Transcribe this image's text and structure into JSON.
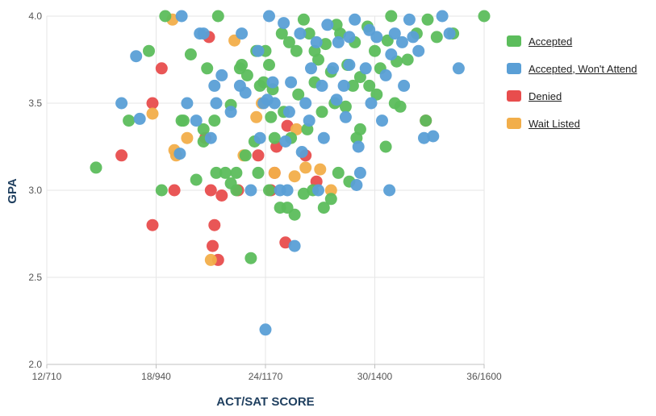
{
  "chart_data": {
    "type": "scatter",
    "xlabel": "ACT/SAT SCORE",
    "ylabel": "GPA",
    "x_ticks": [
      "12/710",
      "18/940",
      "24/1170",
      "30/1400",
      "36/1600"
    ],
    "x_tick_values": [
      12,
      18,
      24,
      30,
      36
    ],
    "xlim": [
      12,
      36
    ],
    "y_ticks": [
      "2.0",
      "2.5",
      "3.0",
      "3.5",
      "4.0"
    ],
    "y_tick_values": [
      2.0,
      2.5,
      3.0,
      3.5,
      4.0
    ],
    "ylim": [
      2.0,
      4.0
    ],
    "grid": true,
    "legend_position": "right",
    "series": [
      {
        "name": "Denied",
        "color": "#e84d4d",
        "points": [
          [
            16.1,
            3.2
          ],
          [
            17.8,
            3.5
          ],
          [
            17.8,
            2.8
          ],
          [
            18.3,
            3.7
          ],
          [
            19,
            3.0
          ],
          [
            20.9,
            3.88
          ],
          [
            20.7,
            3.3
          ],
          [
            21,
            3.0
          ],
          [
            21.2,
            2.8
          ],
          [
            21.6,
            2.97
          ],
          [
            21.1,
            2.68
          ],
          [
            21.4,
            2.6
          ],
          [
            22.5,
            3.0
          ],
          [
            23.6,
            3.2
          ],
          [
            24.3,
            3.0
          ],
          [
            24.6,
            3.25
          ],
          [
            24.5,
            3.1
          ],
          [
            25.1,
            2.7
          ],
          [
            25.2,
            3.37
          ],
          [
            26.2,
            3.2
          ],
          [
            26.8,
            3.05
          ],
          [
            32.8,
            3.4
          ]
        ]
      },
      {
        "name": "Wait Listed",
        "color": "#f2ae4a",
        "points": [
          [
            17.8,
            3.44
          ],
          [
            18.9,
            3.98
          ],
          [
            19,
            3.23
          ],
          [
            19.1,
            3.2
          ],
          [
            19.7,
            3.3
          ],
          [
            21,
            2.6
          ],
          [
            22.3,
            3.86
          ],
          [
            22.8,
            3.2
          ],
          [
            23.5,
            3.42
          ],
          [
            23.8,
            3.5
          ],
          [
            24.5,
            3.1
          ],
          [
            25.6,
            3.08
          ],
          [
            25.7,
            3.35
          ],
          [
            26.2,
            3.13
          ],
          [
            27,
            3.12
          ],
          [
            27.6,
            3.0
          ]
        ]
      },
      {
        "name": "Accepted",
        "color": "#5cbd5c",
        "points": [
          [
            14.7,
            3.13
          ],
          [
            16.5,
            3.4
          ],
          [
            17.6,
            3.8
          ],
          [
            18.5,
            4.0
          ],
          [
            18.3,
            3.0
          ],
          [
            19.5,
            3.4
          ],
          [
            19.9,
            3.78
          ],
          [
            20.2,
            3.06
          ],
          [
            20.6,
            3.35
          ],
          [
            21.4,
            4.0
          ],
          [
            21.3,
            3.1
          ],
          [
            20.8,
            3.7
          ],
          [
            22.1,
            3.49
          ],
          [
            22.4,
            3.1
          ],
          [
            22.6,
            3.7
          ],
          [
            23,
            3.66
          ],
          [
            23.5,
            3.8
          ],
          [
            23.9,
            3.62
          ],
          [
            24.2,
            3.72
          ],
          [
            24.4,
            3.58
          ],
          [
            24.9,
            3.9
          ],
          [
            25.3,
            3.85
          ],
          [
            25.7,
            3.8
          ],
          [
            26.1,
            3.98
          ],
          [
            26.4,
            3.9
          ],
          [
            26.9,
            3.75
          ],
          [
            27.3,
            3.84
          ],
          [
            27.6,
            3.68
          ],
          [
            28.1,
            3.9
          ],
          [
            28.5,
            3.72
          ],
          [
            28.9,
            3.85
          ],
          [
            29.2,
            3.65
          ],
          [
            29.6,
            3.94
          ],
          [
            30,
            3.8
          ],
          [
            30.3,
            3.7
          ],
          [
            30.7,
            3.86
          ],
          [
            31.2,
            3.74
          ],
          [
            31.8,
            3.75
          ],
          [
            32.3,
            3.9
          ],
          [
            32.8,
            3.4
          ],
          [
            33.4,
            3.88
          ],
          [
            34.3,
            3.9
          ],
          [
            36,
            4.0
          ],
          [
            31.1,
            3.5
          ],
          [
            30.6,
            3.25
          ],
          [
            29.2,
            3.35
          ],
          [
            29,
            3.3
          ],
          [
            28.6,
            3.05
          ],
          [
            28,
            3.1
          ],
          [
            27.6,
            2.95
          ],
          [
            27.2,
            2.9
          ],
          [
            26.6,
            3.0
          ],
          [
            26.1,
            2.98
          ],
          [
            25.6,
            2.86
          ],
          [
            25.2,
            2.9
          ],
          [
            24.8,
            2.9
          ],
          [
            24.2,
            3.0
          ],
          [
            23.2,
            2.61
          ],
          [
            23.6,
            3.1
          ],
          [
            22.9,
            3.2
          ],
          [
            22.4,
            3.0
          ],
          [
            21.8,
            3.1
          ],
          [
            21.2,
            3.4
          ],
          [
            20.6,
            3.28
          ],
          [
            19.4,
            3.4
          ],
          [
            24,
            3.8
          ],
          [
            25,
            3.45
          ],
          [
            25.8,
            3.55
          ],
          [
            26.7,
            3.62
          ],
          [
            27.8,
            3.5
          ],
          [
            28.8,
            3.6
          ],
          [
            30.1,
            3.55
          ],
          [
            31.4,
            3.48
          ],
          [
            29.7,
            3.6
          ],
          [
            28.4,
            3.48
          ],
          [
            27.1,
            3.45
          ],
          [
            26.3,
            3.35
          ],
          [
            25.4,
            3.3
          ],
          [
            24.5,
            3.3
          ],
          [
            24.3,
            3.42
          ],
          [
            23.7,
            3.6
          ],
          [
            22.7,
            3.72
          ],
          [
            26.7,
            3.8
          ],
          [
            27.9,
            3.95
          ],
          [
            30.9,
            4.0
          ],
          [
            32.9,
            3.98
          ],
          [
            23.4,
            3.28
          ],
          [
            22.1,
            3.04
          ]
        ]
      },
      {
        "name": "Accepted, Won't Attend",
        "color": "#5a9fd6",
        "points": [
          [
            16.1,
            3.5
          ],
          [
            16.9,
            3.77
          ],
          [
            17.1,
            3.41
          ],
          [
            19.3,
            3.21
          ],
          [
            19.4,
            4.0
          ],
          [
            19.7,
            3.5
          ],
          [
            20.2,
            3.4
          ],
          [
            20.4,
            3.9
          ],
          [
            20.6,
            3.9
          ],
          [
            21.2,
            3.6
          ],
          [
            21,
            3.3
          ],
          [
            21.3,
            3.5
          ],
          [
            21.6,
            3.66
          ],
          [
            22.1,
            3.45
          ],
          [
            22.6,
            3.6
          ],
          [
            22.7,
            3.9
          ],
          [
            23.2,
            3.0
          ],
          [
            23.7,
            3.3
          ],
          [
            24,
            2.2
          ],
          [
            24.2,
            4.0
          ],
          [
            24.5,
            3.5
          ],
          [
            24.8,
            3.0
          ],
          [
            25.1,
            3.28
          ],
          [
            25.4,
            3.62
          ],
          [
            25.6,
            2.68
          ],
          [
            25.9,
            3.9
          ],
          [
            26.2,
            3.5
          ],
          [
            26.5,
            3.7
          ],
          [
            26.8,
            3.85
          ],
          [
            27.1,
            3.6
          ],
          [
            27.4,
            3.95
          ],
          [
            27.7,
            3.7
          ],
          [
            28,
            3.85
          ],
          [
            28.3,
            3.6
          ],
          [
            28.6,
            3.72
          ],
          [
            28.9,
            3.98
          ],
          [
            29.2,
            3.1
          ],
          [
            29.5,
            3.7
          ],
          [
            29.8,
            3.5
          ],
          [
            30.1,
            3.88
          ],
          [
            30.4,
            3.4
          ],
          [
            30.8,
            3.0
          ],
          [
            31.1,
            3.9
          ],
          [
            31.5,
            3.85
          ],
          [
            31.9,
            3.98
          ],
          [
            32.4,
            3.8
          ],
          [
            32.7,
            3.3
          ],
          [
            33.2,
            3.31
          ],
          [
            33.7,
            4.0
          ],
          [
            34.1,
            3.9
          ],
          [
            34.6,
            3.7
          ],
          [
            25.3,
            3.45
          ],
          [
            26,
            3.22
          ],
          [
            27.2,
            3.3
          ],
          [
            28.4,
            3.42
          ],
          [
            29.1,
            3.25
          ],
          [
            30.6,
            3.66
          ],
          [
            31.6,
            3.6
          ],
          [
            24.4,
            3.62
          ],
          [
            23.6,
            3.8
          ],
          [
            26.9,
            3.0
          ],
          [
            29,
            3.03
          ],
          [
            26.4,
            3.4
          ],
          [
            27.9,
            3.52
          ],
          [
            28.6,
            3.88
          ],
          [
            29.7,
            3.92
          ],
          [
            30.9,
            3.78
          ],
          [
            32.1,
            3.88
          ],
          [
            25,
            3.96
          ],
          [
            24.1,
            3.52
          ],
          [
            23.9,
            3.5
          ],
          [
            22.9,
            3.56
          ],
          [
            25.2,
            3.0
          ]
        ]
      }
    ]
  },
  "legend": {
    "items": [
      {
        "label": "Accepted",
        "color": "#5cbd5c"
      },
      {
        "label": "Accepted, Won't Attend",
        "color": "#5a9fd6"
      },
      {
        "label": "Denied",
        "color": "#e84d4d"
      },
      {
        "label": "Wait Listed",
        "color": "#f2ae4a"
      }
    ]
  }
}
